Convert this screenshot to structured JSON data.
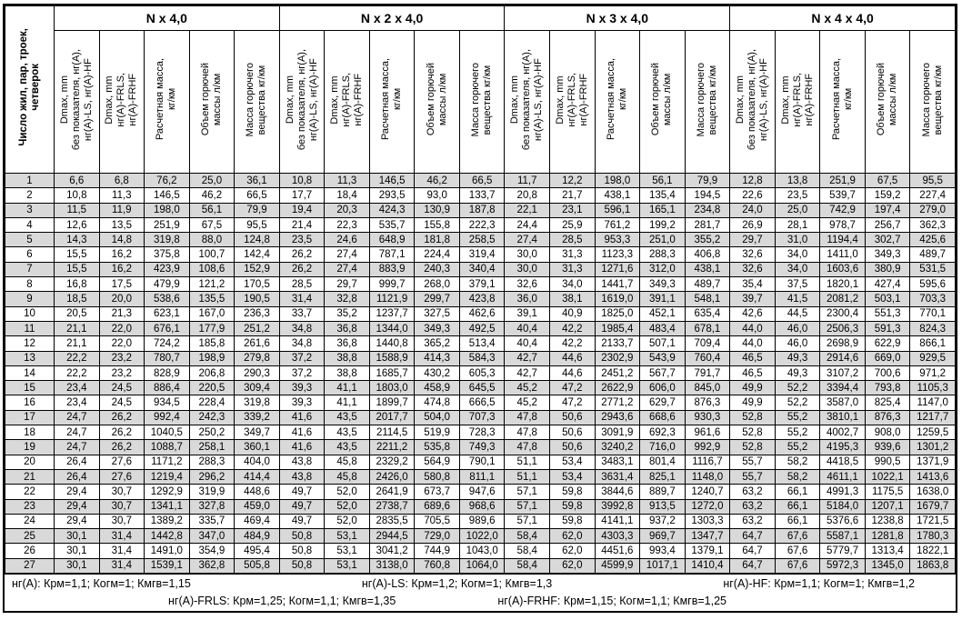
{
  "table": {
    "corner_header": "Число жил, пар, троек,\nчетверок",
    "groups": [
      {
        "title": "N x 4,0"
      },
      {
        "title": "N x 2 x 4,0"
      },
      {
        "title": "N x 3 x 4,0"
      },
      {
        "title": "N x 4 x 4,0"
      }
    ],
    "sub_headers": [
      "Dmax, mm\nбез показателя, нг(А),\nнг(А)-LS, нг(А)-HF",
      "Dmax, mm\nнг(А)-FRLS,\nнг(А)-FRHF",
      "Расчетная масса,\nкг/км",
      "Объем горючей\nмассы л/км",
      "Масса горючего\nвещества кг/км"
    ],
    "row_shading_color": "#d9d9d9",
    "rows": [
      [
        "1",
        "6,6",
        "6,8",
        "76,2",
        "25,0",
        "36,1",
        "10,8",
        "11,3",
        "146,5",
        "46,2",
        "66,5",
        "11,7",
        "12,2",
        "198,0",
        "56,1",
        "79,9",
        "12,8",
        "13,8",
        "251,9",
        "67,5",
        "95,5"
      ],
      [
        "2",
        "10,8",
        "11,3",
        "146,5",
        "46,2",
        "66,5",
        "17,7",
        "18,4",
        "293,5",
        "93,0",
        "133,7",
        "20,8",
        "21,7",
        "438,1",
        "135,4",
        "194,5",
        "22,6",
        "23,5",
        "539,7",
        "159,2",
        "227,4"
      ],
      [
        "3",
        "11,5",
        "11,9",
        "198,0",
        "56,1",
        "79,9",
        "19,4",
        "20,3",
        "424,3",
        "130,9",
        "187,8",
        "22,1",
        "23,1",
        "596,1",
        "165,1",
        "234,8",
        "24,0",
        "25,0",
        "742,9",
        "197,4",
        "279,0"
      ],
      [
        "4",
        "12,6",
        "13,5",
        "251,9",
        "67,5",
        "95,5",
        "21,4",
        "22,3",
        "535,7",
        "155,8",
        "222,3",
        "24,4",
        "25,9",
        "761,2",
        "199,2",
        "281,7",
        "26,9",
        "28,1",
        "978,7",
        "256,7",
        "362,3"
      ],
      [
        "5",
        "14,3",
        "14,8",
        "319,8",
        "88,0",
        "124,8",
        "23,5",
        "24,6",
        "648,9",
        "181,8",
        "258,5",
        "27,4",
        "28,5",
        "953,3",
        "251,0",
        "355,2",
        "29,7",
        "31,0",
        "1194,4",
        "302,7",
        "425,6"
      ],
      [
        "6",
        "15,5",
        "16,2",
        "375,8",
        "100,7",
        "142,4",
        "26,2",
        "27,4",
        "787,1",
        "224,4",
        "319,4",
        "30,0",
        "31,3",
        "1123,3",
        "288,3",
        "406,8",
        "32,6",
        "34,0",
        "1411,0",
        "349,3",
        "489,7"
      ],
      [
        "7",
        "15,5",
        "16,2",
        "423,9",
        "108,6",
        "152,9",
        "26,2",
        "27,4",
        "883,9",
        "240,3",
        "340,4",
        "30,0",
        "31,3",
        "1271,6",
        "312,0",
        "438,1",
        "32,6",
        "34,0",
        "1603,6",
        "380,9",
        "531,5"
      ],
      [
        "8",
        "16,8",
        "17,5",
        "479,9",
        "121,2",
        "170,5",
        "28,5",
        "29,7",
        "999,7",
        "268,0",
        "379,1",
        "32,6",
        "34,0",
        "1441,7",
        "349,3",
        "489,7",
        "35,4",
        "37,5",
        "1820,1",
        "427,4",
        "595,6"
      ],
      [
        "9",
        "18,5",
        "20,0",
        "538,6",
        "135,5",
        "190,5",
        "31,4",
        "32,8",
        "1121,9",
        "299,7",
        "423,8",
        "36,0",
        "38,1",
        "1619,0",
        "391,1",
        "548,1",
        "39,7",
        "41,5",
        "2081,2",
        "503,1",
        "703,3"
      ],
      [
        "10",
        "20,5",
        "21,3",
        "623,1",
        "167,0",
        "236,3",
        "33,7",
        "35,2",
        "1237,7",
        "327,5",
        "462,6",
        "39,1",
        "40,9",
        "1825,0",
        "452,1",
        "635,4",
        "42,6",
        "44,5",
        "2300,4",
        "551,3",
        "770,1"
      ],
      [
        "11",
        "21,1",
        "22,0",
        "676,1",
        "177,9",
        "251,2",
        "34,8",
        "36,8",
        "1344,0",
        "349,3",
        "492,5",
        "40,4",
        "42,2",
        "1985,4",
        "483,4",
        "678,1",
        "44,0",
        "46,0",
        "2506,3",
        "591,3",
        "824,3"
      ],
      [
        "12",
        "21,1",
        "22,0",
        "724,2",
        "185,8",
        "261,6",
        "34,8",
        "36,8",
        "1440,8",
        "365,2",
        "513,4",
        "40,4",
        "42,2",
        "2133,7",
        "507,1",
        "709,4",
        "44,0",
        "46,0",
        "2698,9",
        "622,9",
        "866,1"
      ],
      [
        "13",
        "22,2",
        "23,2",
        "780,7",
        "198,9",
        "279,8",
        "37,2",
        "38,8",
        "1588,9",
        "414,3",
        "584,3",
        "42,7",
        "44,6",
        "2302,9",
        "543,9",
        "760,4",
        "46,5",
        "49,3",
        "2914,6",
        "669,0",
        "929,5"
      ],
      [
        "14",
        "22,2",
        "23,2",
        "828,9",
        "206,8",
        "290,3",
        "37,2",
        "38,8",
        "1685,7",
        "430,2",
        "605,3",
        "42,7",
        "44,6",
        "2451,2",
        "567,7",
        "791,7",
        "46,5",
        "49,3",
        "3107,2",
        "700,6",
        "971,2"
      ],
      [
        "15",
        "23,4",
        "24,5",
        "886,4",
        "220,5",
        "309,4",
        "39,3",
        "41,1",
        "1803,0",
        "458,9",
        "645,5",
        "45,2",
        "47,2",
        "2622,9",
        "606,0",
        "845,0",
        "49,9",
        "52,2",
        "3394,4",
        "793,8",
        "1105,3"
      ],
      [
        "16",
        "23,4",
        "24,5",
        "934,5",
        "228,4",
        "319,8",
        "39,3",
        "41,1",
        "1899,7",
        "474,8",
        "666,5",
        "45,2",
        "47,2",
        "2771,2",
        "629,7",
        "876,3",
        "49,9",
        "52,2",
        "3587,0",
        "825,4",
        "1147,0"
      ],
      [
        "17",
        "24,7",
        "26,2",
        "992,4",
        "242,3",
        "339,2",
        "41,6",
        "43,5",
        "2017,7",
        "504,0",
        "707,3",
        "47,8",
        "50,6",
        "2943,6",
        "668,6",
        "930,3",
        "52,8",
        "55,2",
        "3810,1",
        "876,3",
        "1217,7"
      ],
      [
        "18",
        "24,7",
        "26,2",
        "1040,5",
        "250,2",
        "349,7",
        "41,6",
        "43,5",
        "2114,5",
        "519,9",
        "728,3",
        "47,8",
        "50,6",
        "3091,9",
        "692,3",
        "961,6",
        "52,8",
        "55,2",
        "4002,7",
        "908,0",
        "1259,5"
      ],
      [
        "19",
        "24,7",
        "26,2",
        "1088,7",
        "258,1",
        "360,1",
        "41,6",
        "43,5",
        "2211,2",
        "535,8",
        "749,3",
        "47,8",
        "50,6",
        "3240,2",
        "716,0",
        "992,9",
        "52,8",
        "55,2",
        "4195,3",
        "939,6",
        "1301,2"
      ],
      [
        "20",
        "26,4",
        "27,6",
        "1171,2",
        "288,3",
        "404,0",
        "43,8",
        "45,8",
        "2329,2",
        "564,9",
        "790,1",
        "51,1",
        "53,4",
        "3483,1",
        "801,4",
        "1116,7",
        "55,7",
        "58,2",
        "4418,5",
        "990,5",
        "1371,9"
      ],
      [
        "21",
        "26,4",
        "27,6",
        "1219,4",
        "296,2",
        "414,4",
        "43,8",
        "45,8",
        "2426,0",
        "580,8",
        "811,1",
        "51,1",
        "53,4",
        "3631,4",
        "825,1",
        "1148,0",
        "55,7",
        "58,2",
        "4611,1",
        "1022,1",
        "1413,6"
      ],
      [
        "22",
        "29,4",
        "30,7",
        "1292,9",
        "319,9",
        "448,6",
        "49,7",
        "52,0",
        "2641,9",
        "673,7",
        "947,6",
        "57,1",
        "59,8",
        "3844,6",
        "889,7",
        "1240,7",
        "63,2",
        "66,1",
        "4991,3",
        "1175,5",
        "1638,0"
      ],
      [
        "23",
        "29,4",
        "30,7",
        "1341,1",
        "327,8",
        "459,0",
        "49,7",
        "52,0",
        "2738,7",
        "689,6",
        "968,6",
        "57,1",
        "59,8",
        "3992,8",
        "913,5",
        "1272,0",
        "63,2",
        "66,1",
        "5184,0",
        "1207,1",
        "1679,7"
      ],
      [
        "24",
        "29,4",
        "30,7",
        "1389,2",
        "335,7",
        "469,4",
        "49,7",
        "52,0",
        "2835,5",
        "705,5",
        "989,6",
        "57,1",
        "59,8",
        "4141,1",
        "937,2",
        "1303,3",
        "63,2",
        "66,1",
        "5376,6",
        "1238,8",
        "1721,5"
      ],
      [
        "25",
        "30,1",
        "31,4",
        "1442,8",
        "347,0",
        "484,9",
        "50,8",
        "53,1",
        "2944,5",
        "729,0",
        "1022,0",
        "58,4",
        "62,0",
        "4303,3",
        "969,7",
        "1347,7",
        "64,7",
        "67,6",
        "5587,1",
        "1281,8",
        "1780,3"
      ],
      [
        "26",
        "30,1",
        "31,4",
        "1491,0",
        "354,9",
        "495,4",
        "50,8",
        "53,1",
        "3041,2",
        "744,9",
        "1043,0",
        "58,4",
        "62,0",
        "4451,6",
        "993,4",
        "1379,1",
        "64,7",
        "67,6",
        "5779,7",
        "1313,4",
        "1822,1"
      ],
      [
        "27",
        "30,1",
        "31,4",
        "1539,1",
        "362,8",
        "505,8",
        "50,8",
        "53,1",
        "3138,0",
        "760,8",
        "1064,0",
        "58,4",
        "62,0",
        "4599,9",
        "1017,1",
        "1410,4",
        "64,7",
        "67,6",
        "5972,3",
        "1345,0",
        "1863,8"
      ]
    ]
  },
  "footer": {
    "line1": [
      "нг(А): Крм=1,1;  Когм=1;  Кмгв=1,15",
      "нг(А)-LS: Крм=1,2;  Когм=1;  Кмгв=1,3",
      "нг(А)-HF: Крм=1,1;  Когм=1;  Кмгв=1,2"
    ],
    "line2": [
      "нг(А)-FRLS: Крм=1,25;  Когм=1,1;  Кмгв=1,35",
      "нг(А)-FRHF: Крм=1,15;  Когм=1,1;  Кмгв=1,25"
    ]
  }
}
